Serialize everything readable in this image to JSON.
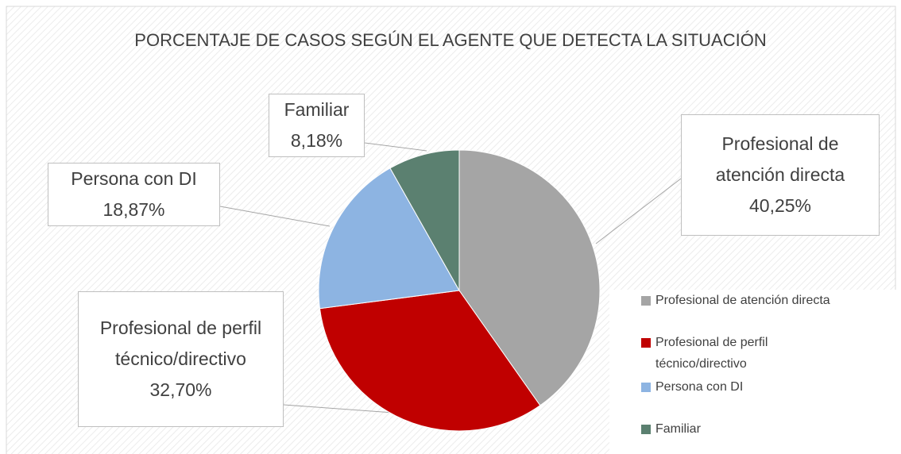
{
  "chart_data": {
    "type": "pie",
    "title": "PORCENTAJE DE CASOS SEGÚN EL AGENTE QUE DETECTA LA SITUACIÓN",
    "categories": [
      "Profesional de atención directa",
      "Profesional de perfil técnico/directivo",
      "Persona con DI",
      "Familiar"
    ],
    "values": [
      40.25,
      32.7,
      18.87,
      8.18
    ],
    "value_labels": [
      "40,25%",
      "32,70%",
      "18,87%",
      "8,18%"
    ],
    "colors": [
      "#a5a5a5",
      "#c00000",
      "#8db4e2",
      "#5b8070"
    ],
    "legend": "right"
  }
}
